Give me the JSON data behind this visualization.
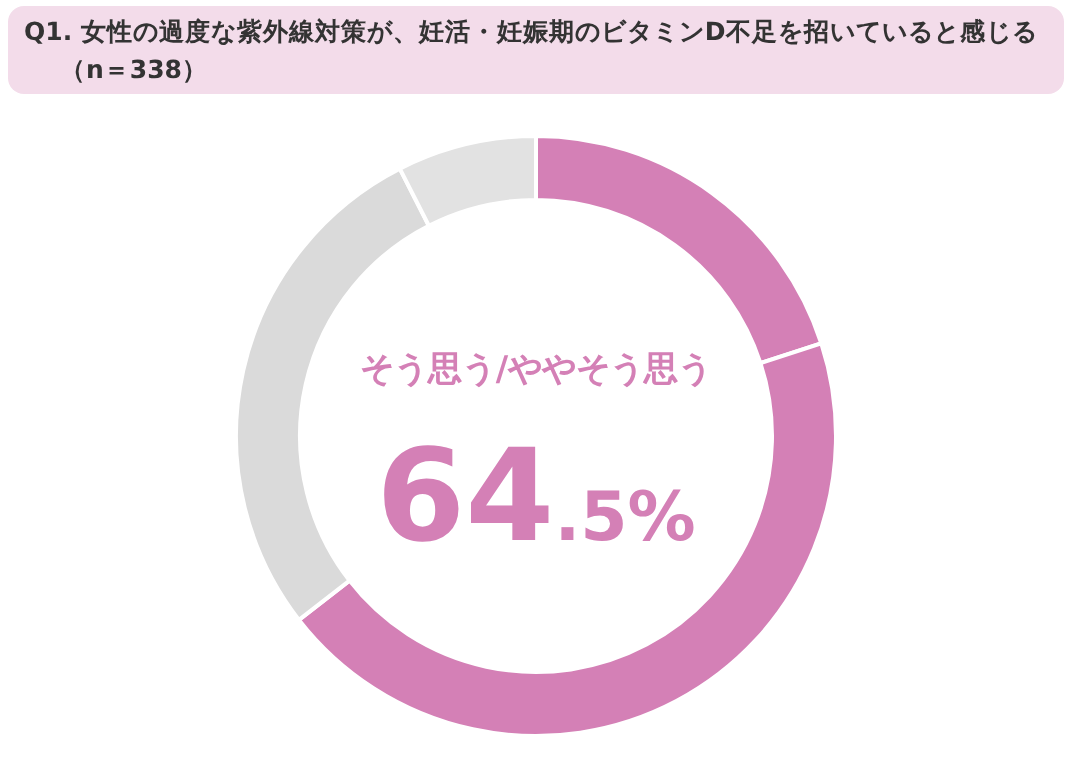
{
  "chart_data": {
    "type": "donut",
    "title": "Q1. 女性の過度な紫外線対策が、妊活・妊娠期のビタミンD不足を招いていると感じる",
    "subtitle": "（n＝338）",
    "categories": [
      null,
      null,
      null,
      null
    ],
    "values": [
      20,
      44.5,
      28,
      7.5
    ],
    "colors": [
      "#d480b6",
      "#d480b6",
      "#dadada",
      "#e2e2e2"
    ],
    "annotations": [
      "そう思う/ややそう思う",
      "64.5%"
    ]
  }
}
